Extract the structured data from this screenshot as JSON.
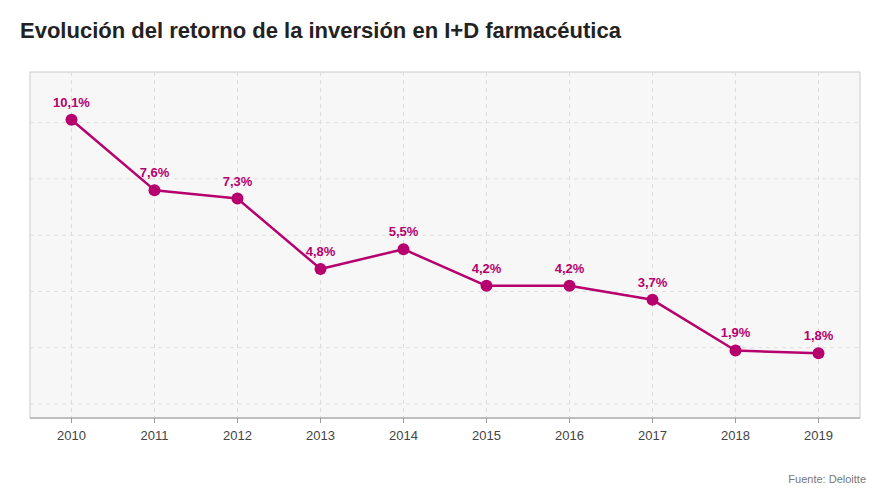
{
  "chart_data": {
    "type": "line",
    "title": "Evolución del retorno de la inversión en I+D farmacéutica",
    "source": "Fuente: Deloitte",
    "x": [
      2010,
      2011,
      2012,
      2013,
      2014,
      2015,
      2016,
      2017,
      2018,
      2019
    ],
    "values": [
      10.1,
      7.6,
      7.3,
      4.8,
      5.5,
      4.2,
      4.2,
      3.7,
      1.9,
      1.8
    ],
    "value_labels": [
      "10,1%",
      "7,6%",
      "7,3%",
      "4,8%",
      "5,5%",
      "4,2%",
      "4,2%",
      "3,7%",
      "1,9%",
      "1,8%"
    ],
    "data_labels": true,
    "color": "#b5006e",
    "marker": "circle",
    "xlim": [
      2009.5,
      2019.5
    ],
    "xticks": [
      2010,
      2011,
      2012,
      2013,
      2014,
      2015,
      2016,
      2017,
      2018,
      2019
    ],
    "ylim": [
      -0.5,
      11.8
    ],
    "yticks": [
      0,
      2,
      4,
      6,
      8,
      10
    ],
    "grid": true,
    "tick_labels": "x"
  }
}
